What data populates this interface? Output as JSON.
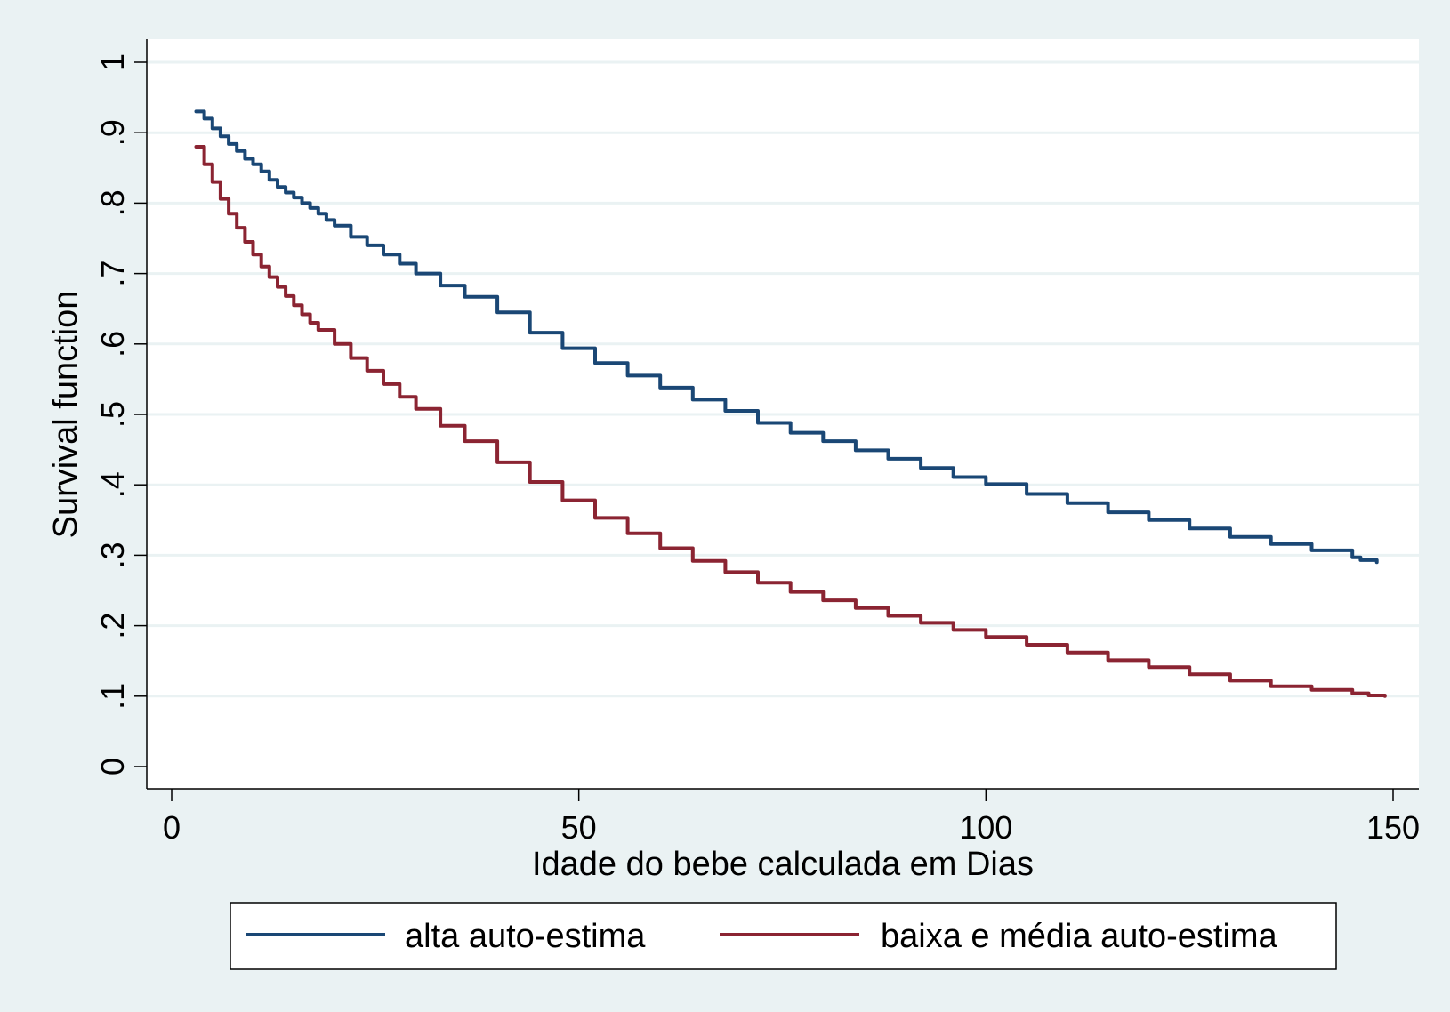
{
  "chart_data": {
    "type": "line",
    "step": true,
    "xlabel": "Idade do bebe calculada em Dias",
    "ylabel": "Survival function",
    "xlim": [
      0,
      150
    ],
    "ylim": [
      0,
      1
    ],
    "xticks": [
      0,
      50,
      100,
      150
    ],
    "xtick_labels": [
      "0",
      "50",
      "100",
      "150"
    ],
    "yticks": [
      0,
      0.1,
      0.2,
      0.3,
      0.4,
      0.5,
      0.6,
      0.7,
      0.8,
      0.9,
      1
    ],
    "ytick_labels": [
      "0",
      ".1",
      ".2",
      ".3",
      ".4",
      ".5",
      ".6",
      ".7",
      ".8",
      ".9",
      "1"
    ],
    "grid": "horizontal",
    "legend_position": "bottom",
    "colors": {
      "background": "#eaf2f3",
      "plot_area": "#ffffff",
      "gridline": "#eaf2f3",
      "axis": "#000000"
    },
    "series": [
      {
        "name": "alta auto-estima",
        "color": "#1a4775",
        "x": [
          3,
          4,
          5,
          6,
          7,
          8,
          9,
          10,
          11,
          12,
          13,
          14,
          15,
          16,
          17,
          18,
          19,
          20,
          22,
          24,
          26,
          28,
          30,
          33,
          36,
          40,
          44,
          48,
          52,
          56,
          60,
          64,
          68,
          72,
          76,
          80,
          84,
          88,
          92,
          96,
          100,
          105,
          110,
          115,
          120,
          125,
          130,
          135,
          140,
          145,
          146,
          148
        ],
        "y": [
          0.93,
          0.92,
          0.906,
          0.895,
          0.884,
          0.874,
          0.863,
          0.855,
          0.845,
          0.833,
          0.823,
          0.815,
          0.808,
          0.8,
          0.793,
          0.785,
          0.776,
          0.768,
          0.752,
          0.74,
          0.727,
          0.714,
          0.7,
          0.683,
          0.667,
          0.645,
          0.616,
          0.594,
          0.573,
          0.555,
          0.538,
          0.521,
          0.505,
          0.488,
          0.474,
          0.462,
          0.449,
          0.437,
          0.424,
          0.411,
          0.401,
          0.387,
          0.374,
          0.361,
          0.35,
          0.338,
          0.326,
          0.316,
          0.307,
          0.297,
          0.293,
          0.29
        ]
      },
      {
        "name": "baixa e média auto-estima",
        "color": "#8b2432",
        "x": [
          3,
          4,
          5,
          6,
          7,
          8,
          9,
          10,
          11,
          12,
          13,
          14,
          15,
          16,
          17,
          18,
          20,
          22,
          24,
          26,
          28,
          30,
          33,
          36,
          40,
          44,
          48,
          52,
          56,
          60,
          64,
          68,
          72,
          76,
          80,
          84,
          88,
          92,
          96,
          100,
          105,
          110,
          115,
          120,
          125,
          130,
          135,
          140,
          145,
          147,
          149
        ],
        "y": [
          0.88,
          0.855,
          0.83,
          0.806,
          0.785,
          0.765,
          0.745,
          0.727,
          0.71,
          0.695,
          0.681,
          0.668,
          0.655,
          0.642,
          0.63,
          0.62,
          0.6,
          0.58,
          0.562,
          0.543,
          0.525,
          0.508,
          0.484,
          0.462,
          0.432,
          0.404,
          0.378,
          0.353,
          0.331,
          0.31,
          0.292,
          0.276,
          0.261,
          0.248,
          0.236,
          0.225,
          0.214,
          0.204,
          0.194,
          0.184,
          0.173,
          0.162,
          0.151,
          0.141,
          0.131,
          0.122,
          0.114,
          0.109,
          0.104,
          0.101,
          0.1
        ]
      }
    ]
  }
}
